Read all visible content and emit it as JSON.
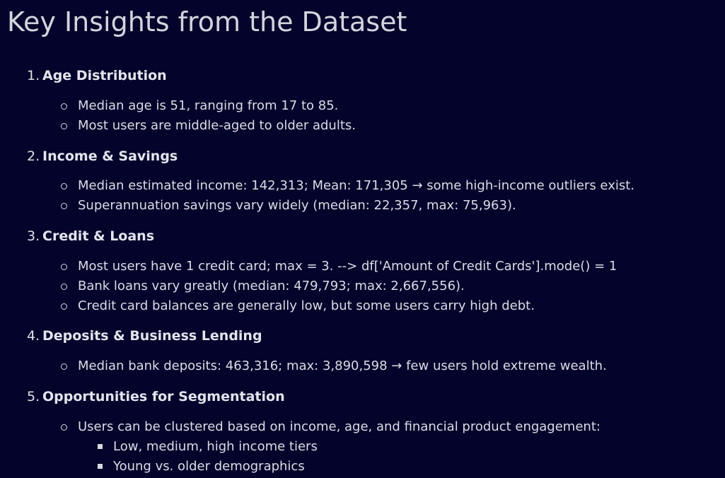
{
  "title": "Key Insights from the Dataset",
  "sections": [
    {
      "number": "1.",
      "heading": "Age Distribution",
      "items": [
        "Median age is 51, ranging from 17 to 85.",
        "Most users are middle-aged to older adults."
      ]
    },
    {
      "number": "2.",
      "heading": "Income & Savings",
      "items": [
        "Median estimated income: 142,313; Mean: 171,305 → some high-income outliers exist.",
        "Superannuation savings vary widely (median: 22,357, max: 75,963)."
      ]
    },
    {
      "number": "3.",
      "heading": "Credit & Loans",
      "items": [
        "Most users have 1 credit card; max = 3. --> df['Amount of Credit Cards'].mode() = 1",
        "Bank loans vary greatly (median: 479,793; max: 2,667,556).",
        "Credit card balances are generally low, but some users carry high debt."
      ]
    },
    {
      "number": "4.",
      "heading": "Deposits & Business Lending",
      "items": [
        "Median bank deposits: 463,316; max: 3,890,598 → few users hold extreme wealth."
      ]
    },
    {
      "number": "5.",
      "heading": "Opportunities for Segmentation",
      "items": [
        "Users can be clustered based on income, age, and financial product engagement:"
      ],
      "subitems": [
        "Low, medium, high income tiers",
        "Young vs. older demographics"
      ]
    }
  ]
}
